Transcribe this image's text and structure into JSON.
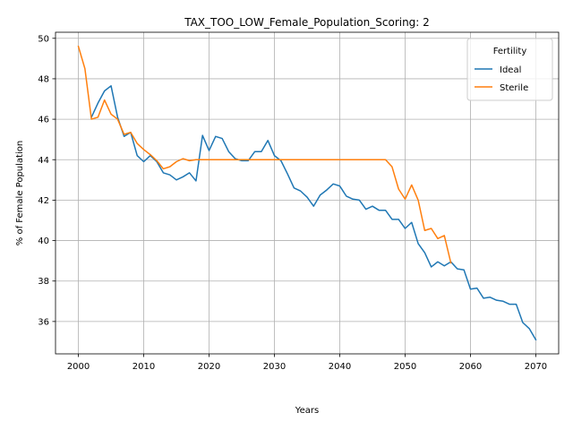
{
  "chart_data": {
    "type": "line",
    "title": "TAX_TOO_LOW_Female_Population_Scoring: 2",
    "xlabel": "Years",
    "ylabel": "% of Female Population",
    "xlim": [
      1996.5,
      2073.5
    ],
    "ylim": [
      34.4,
      50.3
    ],
    "xticks": [
      2000,
      2010,
      2020,
      2030,
      2040,
      2050,
      2060,
      2070
    ],
    "yticks": [
      36,
      38,
      40,
      42,
      44,
      46,
      48,
      50
    ],
    "grid": true,
    "legend": {
      "title": "Fertility",
      "position": "top-right"
    },
    "series": [
      {
        "name": "Ideal",
        "color": "#1f77b4",
        "x": [
          2002,
          2003,
          2004,
          2005,
          2006,
          2007,
          2008,
          2009,
          2010,
          2011,
          2012,
          2013,
          2014,
          2015,
          2016,
          2017,
          2018,
          2019,
          2020,
          2021,
          2022,
          2023,
          2024,
          2025,
          2026,
          2027,
          2028,
          2029,
          2030,
          2031,
          2032,
          2033,
          2034,
          2035,
          2036,
          2037,
          2038,
          2039,
          2040,
          2041,
          2042,
          2043,
          2044,
          2045,
          2046,
          2047,
          2048,
          2049,
          2050,
          2051,
          2052,
          2053,
          2054,
          2055,
          2056,
          2057,
          2058,
          2059,
          2060,
          2061,
          2062,
          2063,
          2064,
          2065,
          2066,
          2067,
          2068,
          2069,
          2070
        ],
        "y": [
          46.1,
          46.8,
          47.4,
          47.65,
          46.1,
          45.15,
          45.35,
          44.2,
          43.9,
          44.2,
          43.9,
          43.35,
          43.25,
          43.0,
          43.15,
          43.35,
          42.95,
          45.2,
          44.45,
          45.15,
          45.05,
          44.4,
          44.05,
          43.95,
          43.95,
          44.4,
          44.4,
          44.95,
          44.2,
          43.95,
          43.3,
          42.6,
          42.45,
          42.15,
          41.7,
          42.25,
          42.5,
          42.8,
          42.7,
          42.2,
          42.05,
          42.0,
          41.55,
          41.7,
          41.5,
          41.5,
          41.05,
          41.05,
          40.6,
          40.9,
          39.85,
          39.4,
          38.7,
          38.95,
          38.75,
          38.95,
          38.6,
          38.55,
          37.6,
          37.65,
          37.15,
          37.2,
          37.05,
          37.0,
          36.85,
          36.85,
          35.95,
          35.65,
          35.1
        ]
      },
      {
        "name": "Sterile",
        "color": "#ff7f0e",
        "x": [
          2000,
          2001,
          2002,
          2003,
          2004,
          2005,
          2006,
          2007,
          2008,
          2009,
          2010,
          2011,
          2012,
          2013,
          2014,
          2015,
          2016,
          2017,
          2018,
          2019,
          2020,
          2021,
          2022,
          2023,
          2024,
          2025,
          2026,
          2027,
          2028,
          2029,
          2030,
          2031,
          2032,
          2033,
          2034,
          2035,
          2036,
          2037,
          2038,
          2039,
          2040,
          2041,
          2042,
          2043,
          2044,
          2045,
          2046,
          2047,
          2048,
          2049,
          2050,
          2051,
          2052,
          2053,
          2054,
          2055,
          2056,
          2057
        ],
        "y": [
          49.6,
          48.5,
          46.0,
          46.1,
          46.95,
          46.25,
          46.0,
          45.25,
          45.35,
          44.8,
          44.5,
          44.25,
          43.95,
          43.55,
          43.65,
          43.9,
          44.05,
          43.95,
          44.0,
          44.0,
          44.0,
          44.0,
          44.0,
          44.0,
          44.0,
          44.0,
          44.0,
          44.0,
          44.0,
          44.0,
          44.0,
          44.0,
          44.0,
          44.0,
          44.0,
          44.0,
          44.0,
          44.0,
          44.0,
          44.0,
          44.0,
          44.0,
          44.0,
          44.0,
          44.0,
          44.0,
          44.0,
          44.0,
          43.65,
          42.55,
          42.05,
          42.75,
          42.0,
          40.5,
          40.6,
          40.1,
          40.25,
          38.9
        ]
      }
    ]
  }
}
